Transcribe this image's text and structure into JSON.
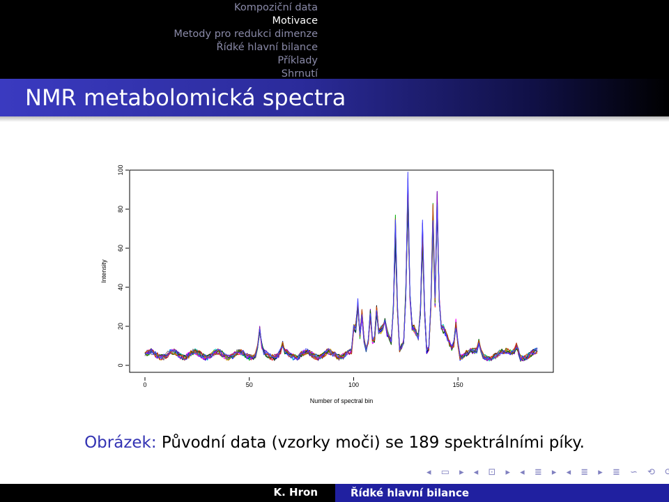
{
  "nav": {
    "items": [
      {
        "label": "Kompoziční data",
        "active": false
      },
      {
        "label": "Motivace",
        "active": true
      },
      {
        "label": "Metody pro redukci dimenze",
        "active": false
      },
      {
        "label": "Řídké hlavní bilance",
        "active": false
      },
      {
        "label": "Příklady",
        "active": false
      },
      {
        "label": "Shrnutí",
        "active": false
      }
    ]
  },
  "slide": {
    "title": "NMR metabolomická spectra",
    "caption_prefix": "Obrázek:",
    "caption_text": "Původní data (vzorky moči) se 189 spektrálními píky."
  },
  "footer": {
    "author": "K. Hron",
    "title": "Řídké hlavní bilance"
  },
  "navsymbols": [
    "◂",
    "▭",
    "▸",
    "◂",
    "⊡",
    "▸",
    "◂",
    "≣",
    "▸",
    "◂",
    "≣",
    "▸",
    "≣",
    "∽",
    "⟲",
    "⟳"
  ],
  "chart_data": {
    "type": "line",
    "xlabel": "Number of spectral bin",
    "ylabel": "Intensity",
    "xlim": [
      0,
      189
    ],
    "ylim": [
      0,
      100
    ],
    "xticks": [
      0,
      50,
      100,
      150
    ],
    "yticks": [
      0,
      20,
      40,
      60,
      80,
      100
    ],
    "n_points": 189,
    "series_colors": [
      "#000000",
      "#ff0000",
      "#00b000",
      "#0000ff",
      "#00c8c8",
      "#ff00ff",
      "#c8a000",
      "#808080",
      "#8000c0",
      "#006000",
      "#c04000",
      "#4040ff"
    ],
    "base_profile": {
      "baseline": 5.5,
      "peaks": [
        {
          "x": 55,
          "y": 18
        },
        {
          "x": 66,
          "y": 11
        },
        {
          "x": 102,
          "y": 31
        },
        {
          "x": 104,
          "y": 27
        },
        {
          "x": 108,
          "y": 26
        },
        {
          "x": 111,
          "y": 28
        },
        {
          "x": 115,
          "y": 23
        },
        {
          "x": 120,
          "y": 72
        },
        {
          "x": 126,
          "y": 93
        },
        {
          "x": 133,
          "y": 70
        },
        {
          "x": 138,
          "y": 78
        },
        {
          "x": 140,
          "y": 84
        },
        {
          "x": 149,
          "y": 21
        },
        {
          "x": 160,
          "y": 12
        },
        {
          "x": 178,
          "y": 10
        }
      ]
    },
    "grid": false,
    "legend": "none"
  }
}
